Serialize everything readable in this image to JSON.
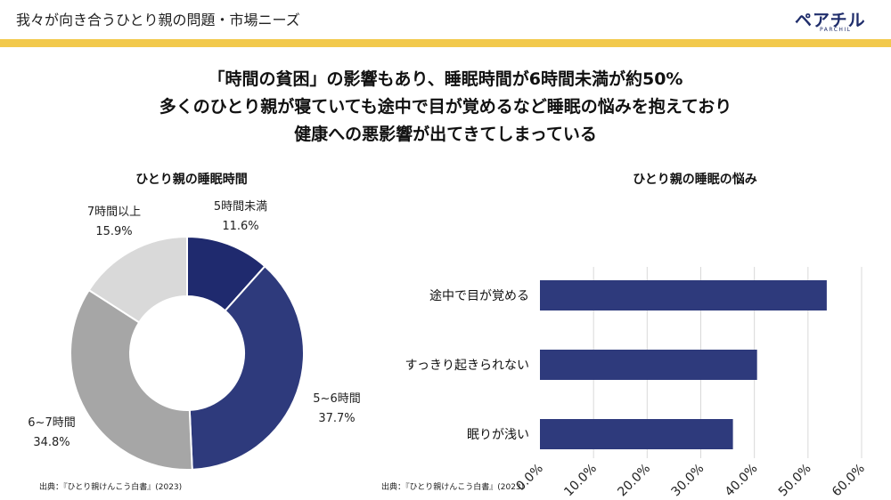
{
  "header": {
    "title": "我々が向き合うひとり親の問題・市場ニーズ"
  },
  "logo": {
    "main": "ペアチル",
    "sub": "PARCHIL"
  },
  "headline": {
    "line1": "「時間の貧困」の影響もあり、睡眠時間が6時間未満が約50%",
    "line2": "多くのひとり親が寝ていても途中で目が覚めるなど睡眠の悩みを抱えており",
    "line3": "健康への悪影響が出てきてしまっている"
  },
  "colors": {
    "accent": "#f2c94c",
    "navy": "#1f2d6b",
    "bar": "#2e3a7c",
    "dark_gray": "#a6a6a6",
    "light_gray": "#d9d9d9"
  },
  "chart_data": [
    {
      "type": "pie",
      "title": "ひとり親の睡眠時間",
      "categories": [
        "5時間未満",
        "5~6時間",
        "6~7時間",
        "7時間以上"
      ],
      "values": [
        11.6,
        37.7,
        34.8,
        15.9
      ],
      "labels": [
        "11.6%",
        "37.7%",
        "34.8%",
        "15.9%"
      ],
      "colors": [
        "#1f2a6e",
        "#2e3a7c",
        "#a6a6a6",
        "#d9d9d9"
      ]
    },
    {
      "type": "bar",
      "title": "ひとり親の睡眠の悩み",
      "orientation": "horizontal",
      "categories": [
        "途中で目が覚める",
        "すっきり起きられない",
        "眠りが浅い"
      ],
      "values": [
        53.5,
        40.5,
        36.0
      ],
      "xlim": [
        0,
        60
      ],
      "ticks": [
        "0.0%",
        "10.0%",
        "20.0%",
        "30.0%",
        "40.0%",
        "50.0%",
        "60.0%"
      ],
      "grid": true
    }
  ],
  "sources": {
    "left": "出典：『ひとり親けんこう白書』(2023)",
    "right": "出典：『ひとり親けんこう白書』(2023)"
  }
}
